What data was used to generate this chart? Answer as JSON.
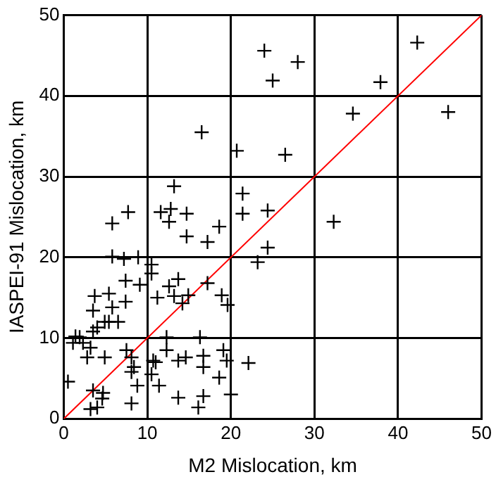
{
  "chart_data": {
    "type": "scatter",
    "xlabel": "M2 Mislocation, km",
    "ylabel": "IASPEI-91 Mislocation, km",
    "xlim": [
      0,
      50
    ],
    "ylim": [
      0,
      50
    ],
    "xticks": [
      0,
      10,
      20,
      30,
      40,
      50
    ],
    "yticks": [
      0,
      10,
      20,
      30,
      40,
      50
    ],
    "grid": true,
    "marker": "cross",
    "series": [
      {
        "type": "scatter",
        "color": "#000000",
        "x": [
          24,
          28,
          25,
          42.3,
          37.9,
          34.6,
          46,
          32.3,
          20.7,
          26.5,
          13.2,
          21.4,
          7.7,
          11.6,
          12.8,
          14.7,
          21.4,
          24.4,
          5.8,
          12.6,
          18.6,
          14.7,
          17.2,
          24.4,
          23.2,
          5.8,
          7.2,
          8.9,
          10.5,
          16.5,
          10.5,
          7.4,
          9.1,
          13.7,
          12.6,
          3.7,
          5.4,
          7.4,
          5.8,
          11.2,
          13.2,
          14.2,
          3.5,
          4.9,
          5.4,
          6.5,
          4,
          3.5,
          1.4,
          1.9,
          2.3,
          1.1,
          3.2,
          2.8,
          4.9,
          7.5,
          8.1,
          8.4,
          8.1,
          8.8,
          10.7,
          11,
          12.3,
          12.3,
          13.7,
          14.6,
          10.5,
          11.4,
          13.7,
          8.1,
          4.6,
          4.7,
          3.5,
          3.2,
          4,
          0.5,
          16.3,
          16.7,
          16.7,
          16.7,
          17.2,
          14.9,
          18.9,
          19.6,
          19.1,
          19.5,
          22.1,
          18.6,
          20,
          16.1
        ],
        "values": [
          45.6,
          44.2,
          41.9,
          46.6,
          41.7,
          37.8,
          38,
          24.4,
          33.2,
          32.7,
          28.8,
          27.9,
          25.6,
          25.6,
          26,
          25.4,
          25.4,
          25.8,
          24.2,
          24.4,
          23.8,
          22.6,
          21.9,
          21.2,
          19.4,
          20.1,
          19.8,
          20,
          19.1,
          35.5,
          18,
          17.1,
          16.6,
          17.3,
          16.4,
          15.2,
          15.5,
          14.5,
          13.8,
          15,
          15.2,
          14.3,
          13.4,
          12,
          12,
          12,
          11.3,
          10.8,
          10.2,
          10.1,
          9.4,
          9.4,
          8.8,
          7.6,
          7.6,
          8.5,
          7.6,
          6.4,
          5.8,
          4.1,
          7.2,
          7,
          10.1,
          8.5,
          7.2,
          7.6,
          5.5,
          4.1,
          2.6,
          1.9,
          2.5,
          3.2,
          3.5,
          1.2,
          1.4,
          4.6,
          10.1,
          7.8,
          6.4,
          2.8,
          16.8,
          15.3,
          15.3,
          14.1,
          8.5,
          7.2,
          6.9,
          5.1,
          3,
          1.4
        ]
      },
      {
        "type": "line",
        "color": "#ff0000",
        "x": [
          0,
          50
        ],
        "values": [
          0,
          50
        ],
        "marker": "none"
      }
    ]
  }
}
